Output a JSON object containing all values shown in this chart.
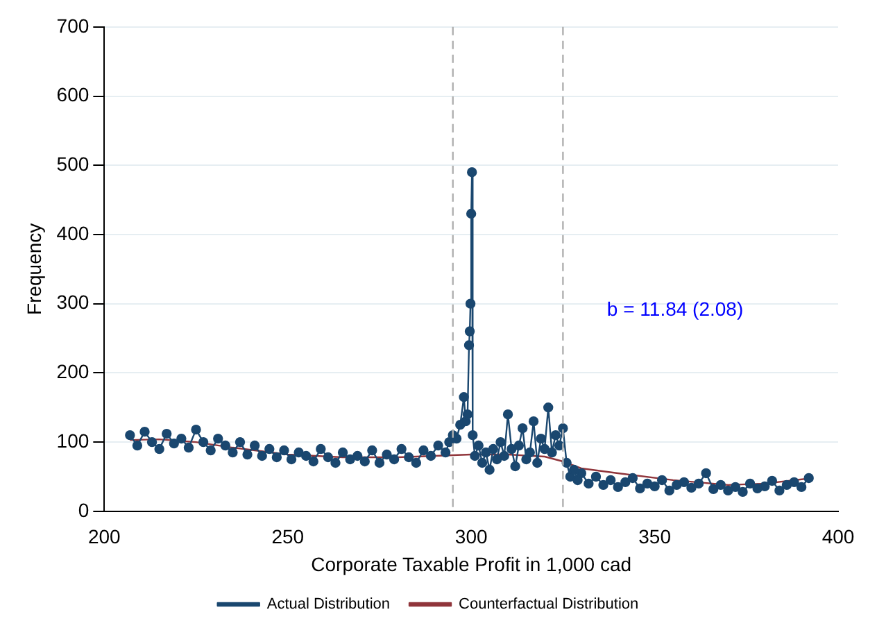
{
  "chart_data": {
    "type": "line",
    "xlabel": "Corporate Taxable Profit in 1,000 cad",
    "ylabel": "Frequency",
    "xlim": [
      200,
      400
    ],
    "xticks": [
      200,
      250,
      300,
      350,
      400
    ],
    "ylim": [
      0,
      700
    ],
    "yticks": [
      0,
      100,
      200,
      300,
      400,
      500,
      600,
      700
    ],
    "grid": "y",
    "legend": "bottom",
    "series": [
      {
        "name": "Actual Distribution",
        "color": "#1a476f",
        "marker": "circle",
        "x": [
          207,
          209,
          211,
          213,
          215,
          217,
          219,
          221,
          223,
          225,
          227,
          229,
          231,
          233,
          235,
          237,
          239,
          241,
          243,
          245,
          247,
          249,
          251,
          253,
          255,
          257,
          259,
          261,
          263,
          265,
          267,
          269,
          271,
          273,
          275,
          277,
          279,
          281,
          283,
          285,
          287,
          289,
          291,
          293,
          294,
          295,
          296,
          297,
          298,
          298.5,
          299,
          299.4,
          299.6,
          299.8,
          300,
          300.2,
          300.4,
          301,
          302,
          303,
          304,
          305,
          306,
          307,
          308,
          309,
          310,
          311,
          312,
          313,
          314,
          315,
          316,
          317,
          318,
          319,
          320,
          321,
          322,
          323,
          324,
          325,
          326,
          327,
          328,
          329,
          330,
          332,
          334,
          336,
          338,
          340,
          342,
          344,
          346,
          348,
          350,
          352,
          354,
          356,
          358,
          360,
          362,
          364,
          366,
          368,
          370,
          372,
          374,
          376,
          378,
          380,
          382,
          384,
          386,
          388,
          390,
          392
        ],
        "values": [
          110,
          95,
          115,
          100,
          90,
          112,
          98,
          105,
          92,
          118,
          100,
          88,
          105,
          95,
          85,
          100,
          82,
          95,
          80,
          90,
          78,
          88,
          75,
          85,
          80,
          72,
          90,
          78,
          70,
          85,
          75,
          80,
          72,
          88,
          70,
          82,
          75,
          90,
          78,
          70,
          88,
          80,
          95,
          85,
          100,
          110,
          105,
          125,
          165,
          130,
          140,
          240,
          260,
          300,
          430,
          490,
          110,
          80,
          95,
          70,
          85,
          60,
          90,
          75,
          100,
          80,
          140,
          90,
          65,
          95,
          120,
          75,
          85,
          130,
          70,
          105,
          90,
          150,
          85,
          110,
          95,
          120,
          70,
          50,
          60,
          45,
          55,
          40,
          50,
          38,
          45,
          35,
          42,
          48,
          33,
          40,
          36,
          45,
          30,
          38,
          42,
          34,
          40,
          55,
          32,
          38,
          30,
          35,
          28,
          40,
          33,
          36,
          44,
          30,
          38,
          42,
          35,
          48
        ]
      },
      {
        "name": "Counterfactual Distribution",
        "color": "#90353b",
        "marker": "none",
        "x": [
          207,
          215,
          225,
          235,
          250,
          265,
          280,
          295,
          300,
          310,
          320,
          325,
          330,
          340,
          355,
          370,
          380,
          393
        ],
        "values": [
          103,
          104,
          100,
          92,
          82,
          78,
          78,
          81,
          82,
          82,
          79,
          72,
          62,
          55,
          45,
          38,
          40,
          48
        ]
      }
    ],
    "ref_lines": [
      {
        "axis": "x",
        "value": 295,
        "color": "#b0b0b0",
        "line_style": "dashed"
      },
      {
        "axis": "x",
        "value": 325,
        "color": "#b0b0b0",
        "line_style": "dashed"
      }
    ],
    "annotations": [
      "b = 11.84 (2.08)"
    ]
  }
}
